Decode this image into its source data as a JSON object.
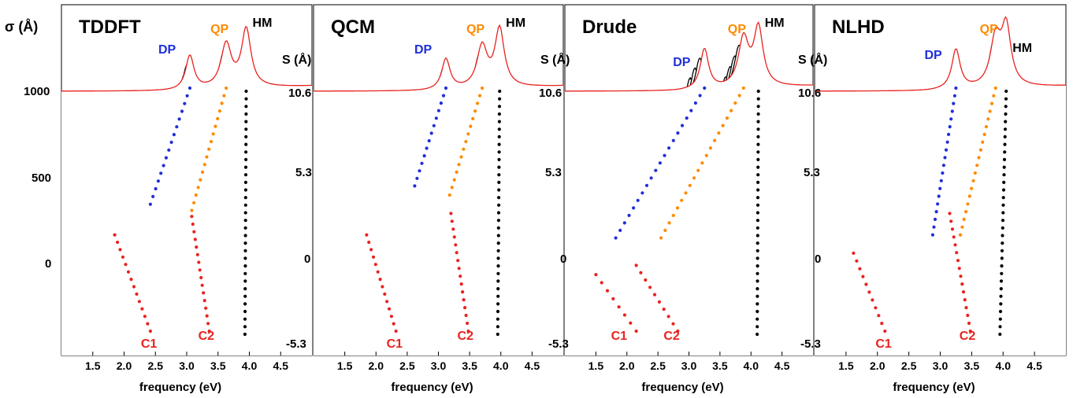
{
  "colors": {
    "red_curve": "#e8231f",
    "black_curve": "#000000",
    "dp_dots": "#1f2fd8",
    "qp_dots": "#ff8a00",
    "hm_dots": "#000000",
    "c_dots": "#e8231f"
  },
  "figure": {
    "sigma_label": "σ (Å)",
    "sigma_ticks": [
      "1000",
      "500",
      "0"
    ],
    "s_header": "S (Å)",
    "s_ticks": [
      "10.6",
      "5.3",
      "0",
      "-5.3"
    ],
    "xlabel": "frequency (eV)"
  },
  "chart_data": [
    {
      "type": "line",
      "title": "TDDFT",
      "xlabel": "frequency (eV)",
      "x_ticks": [
        "1.5",
        "2.0",
        "2.5",
        "3.0",
        "3.5",
        "4.0",
        "4.5"
      ],
      "xlim": [
        1.0,
        5.0
      ],
      "ylim": [
        -6.7,
        12.8
      ],
      "s_top": 10.6,
      "s_bottom": -5.3,
      "offset_per_angstrom": 94,
      "labels": {
        "dp": "DP",
        "qp": "QP",
        "hm": "HM",
        "c1": "C1",
        "c2": "C2"
      },
      "modes": {
        "dp": {
          "s": [
            3.0,
            10.6
          ],
          "e": [
            2.42,
            3.05
          ]
        },
        "qp": {
          "s": [
            2.6,
            10.6
          ],
          "e": [
            3.08,
            3.63
          ]
        },
        "hm": {
          "s": [
            -5.3,
            10.6
          ],
          "e": [
            3.93,
            3.95
          ]
        },
        "c1": {
          "s": [
            -5.3,
            1.0
          ],
          "e": [
            2.42,
            1.85
          ]
        },
        "c2": {
          "s": [
            -5.3,
            2.2
          ],
          "e": [
            3.36,
            3.08
          ]
        }
      }
    },
    {
      "type": "line",
      "title": "QCM",
      "xlabel": "frequency (eV)",
      "x_ticks": [
        "1.5",
        "2.0",
        "2.5",
        "3.0",
        "3.5",
        "4.0",
        "4.5"
      ],
      "xlim": [
        1.0,
        5.0
      ],
      "ylim": [
        -6.7,
        12.8
      ],
      "s_top": 10.6,
      "s_bottom": -5.3,
      "offset_per_angstrom": 94,
      "labels": {
        "dp": "DP",
        "qp": "QP",
        "hm": "HM",
        "c1": "C1",
        "c2": "C2"
      },
      "modes": {
        "dp": {
          "s": [
            4.2,
            10.6
          ],
          "e": [
            2.62,
            3.12
          ]
        },
        "qp": {
          "s": [
            3.6,
            10.6
          ],
          "e": [
            3.18,
            3.7
          ]
        },
        "hm": {
          "s": [
            -5.3,
            10.6
          ],
          "e": [
            3.95,
            3.98
          ]
        },
        "c1": {
          "s": [
            -5.3,
            1.0
          ],
          "e": [
            2.32,
            1.85
          ]
        },
        "c2": {
          "s": [
            -5.3,
            2.4
          ],
          "e": [
            3.48,
            3.2
          ]
        }
      }
    },
    {
      "type": "line",
      "title": "Drude",
      "xlabel": "frequency (eV)",
      "x_ticks": [
        "1.5",
        "2.0",
        "2.5",
        "3.0",
        "3.5",
        "4.0",
        "4.5"
      ],
      "xlim": [
        1.0,
        5.0
      ],
      "ylim": [
        -6.7,
        12.8
      ],
      "s_top": 10.6,
      "s_bottom": -5.3,
      "offset_per_angstrom": 94,
      "labels": {
        "dp": "DP",
        "qp": "QP",
        "hm": "HM",
        "c1": "C1",
        "c2": "C2"
      },
      "modes": {
        "dp": {
          "s": [
            0.8,
            10.6
          ],
          "e": [
            1.82,
            3.25
          ]
        },
        "qp": {
          "s": [
            0.8,
            10.6
          ],
          "e": [
            2.55,
            3.88
          ]
        },
        "hm": {
          "s": [
            -5.3,
            10.6
          ],
          "e": [
            4.1,
            4.12
          ]
        },
        "c1": {
          "s": [
            -5.3,
            -1.6
          ],
          "e": [
            2.15,
            1.5
          ]
        },
        "c2": {
          "s": [
            -5.3,
            -1.0
          ],
          "e": [
            2.82,
            2.15
          ]
        }
      }
    },
    {
      "type": "line",
      "title": "NLHD",
      "xlabel": "frequency (eV)",
      "x_ticks": [
        "1.5",
        "2.0",
        "2.5",
        "3.0",
        "3.5",
        "4.0",
        "4.5"
      ],
      "xlim": [
        1.0,
        5.0
      ],
      "ylim": [
        -6.7,
        12.8
      ],
      "s_top": 10.6,
      "s_bottom": -5.3,
      "offset_per_angstrom": 94,
      "labels": {
        "dp": "DP",
        "qp": "QP",
        "hm": "HM",
        "c1": "C1",
        "c2": "C2"
      },
      "modes": {
        "dp": {
          "s": [
            1.0,
            10.6
          ],
          "e": [
            2.88,
            3.25
          ]
        },
        "qp": {
          "s": [
            1.0,
            10.6
          ],
          "e": [
            3.32,
            3.88
          ]
        },
        "hm": {
          "s": [
            -5.3,
            10.6
          ],
          "e": [
            3.95,
            4.05
          ]
        },
        "c1": {
          "s": [
            -5.3,
            -0.2
          ],
          "e": [
            2.12,
            1.62
          ]
        },
        "c2": {
          "s": [
            -5.3,
            2.4
          ],
          "e": [
            3.48,
            3.15
          ]
        }
      }
    }
  ]
}
